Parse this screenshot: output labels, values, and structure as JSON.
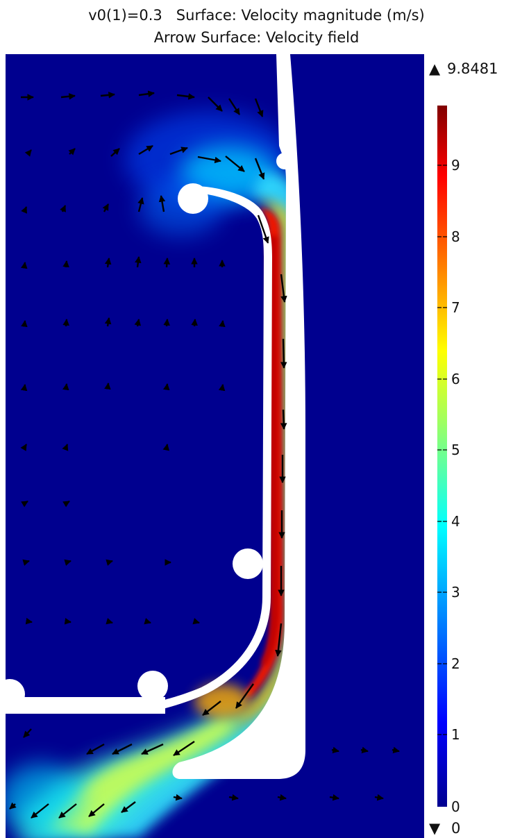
{
  "header": {
    "line1": "v0(1)=0.3   Surface: Velocity magnitude (m/s)",
    "line2": "Arrow Surface: Velocity field"
  },
  "colorbar": {
    "max_label": "9.8481",
    "min_label": "0",
    "max_marker": "▲",
    "min_marker": "▼",
    "ticks": [
      "9",
      "8",
      "7",
      "6",
      "5",
      "4",
      "3",
      "2",
      "1",
      "0"
    ],
    "colormap": "rainbow (dark blue → cyan → yellow → red → dark red)",
    "range": [
      0,
      9.8481
    ]
  }
}
